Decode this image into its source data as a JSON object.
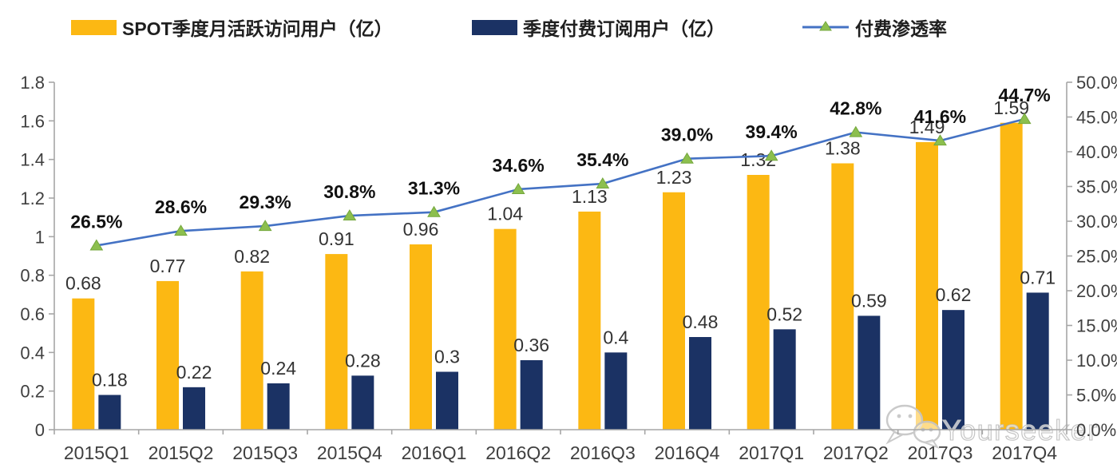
{
  "legend": [
    {
      "label": "SPOT季度月活跃访问用户（亿）",
      "swatch": "bar",
      "color": "#FCB813"
    },
    {
      "label": "季度付费订阅用户（亿）",
      "swatch": "bar",
      "color": "#1B3264"
    },
    {
      "label": "付费渗透率",
      "swatch": "line-marker",
      "line_color": "#4472C4",
      "marker_color": "#8CBF4E"
    }
  ],
  "chart_data": {
    "type": "bar",
    "subtype": "combo-bar-line",
    "categories": [
      "2015Q1",
      "2015Q2",
      "2015Q3",
      "2015Q4",
      "2016Q1",
      "2016Q2",
      "2016Q3",
      "2016Q4",
      "2017Q1",
      "2017Q2",
      "2017Q3",
      "2017Q4"
    ],
    "series": [
      {
        "name": "SPOT季度月活跃访问用户（亿）",
        "type": "bar",
        "axis": "left",
        "color": "#FCB813",
        "values": [
          0.68,
          0.77,
          0.82,
          0.91,
          0.96,
          1.04,
          1.13,
          1.23,
          1.32,
          1.38,
          1.49,
          1.59
        ],
        "labels": [
          "0.68",
          "0.77",
          "0.82",
          "0.91",
          "0.96",
          "1.04",
          "1.13",
          "1.23",
          "1.32",
          "1.38",
          "1.49",
          "1.59"
        ]
      },
      {
        "name": "季度付费订阅用户（亿）",
        "type": "bar",
        "axis": "left",
        "color": "#1B3264",
        "values": [
          0.18,
          0.22,
          0.24,
          0.28,
          0.3,
          0.36,
          0.4,
          0.48,
          0.52,
          0.59,
          0.62,
          0.71
        ],
        "labels": [
          "0.18",
          "0.22",
          "0.24",
          "0.28",
          "0.3",
          "0.36",
          "0.4",
          "0.48",
          "0.52",
          "0.59",
          "0.62",
          "0.71"
        ]
      },
      {
        "name": "付费渗透率",
        "type": "line",
        "axis": "right",
        "color": "#4472C4",
        "marker": "triangle",
        "marker_color": "#8CBF4E",
        "marker_edge": "#74A73D",
        "values": [
          26.5,
          28.6,
          29.3,
          30.8,
          31.3,
          34.6,
          35.4,
          39.0,
          39.4,
          42.8,
          41.6,
          44.7
        ],
        "labels": [
          "26.5%",
          "28.6%",
          "29.3%",
          "30.8%",
          "31.3%",
          "34.6%",
          "35.4%",
          "39.0%",
          "39.4%",
          "42.8%",
          "41.6%",
          "44.7%"
        ]
      }
    ],
    "left_axis": {
      "min": 0,
      "max": 1.8,
      "tick_labels": [
        "0",
        "0.2",
        "0.4",
        "0.6",
        "0.8",
        "1",
        "1.2",
        "1.4",
        "1.6",
        "1.8"
      ]
    },
    "right_axis": {
      "min": 0,
      "max": 50,
      "tick_labels": [
        "0.0%",
        "5.0%",
        "10.0%",
        "15.0%",
        "20.0%",
        "25.0%",
        "30.0%",
        "35.0%",
        "40.0%",
        "45.0%",
        "50.0%"
      ]
    },
    "grid": false,
    "legend_position": "top"
  },
  "watermark": {
    "text": "Yourseeker",
    "icon": "wechat-icon"
  },
  "colors": {
    "bar_mau": "#FCB813",
    "bar_subs": "#1B3264",
    "line": "#4472C4",
    "marker_fill": "#8CBF4E",
    "marker_edge": "#74A73D",
    "axis": "#A6A6A6",
    "tick_label": "#3F3F3F",
    "bar_label": "#333333",
    "pct_label": "#111111",
    "watermark": "#C9C9C9"
  }
}
